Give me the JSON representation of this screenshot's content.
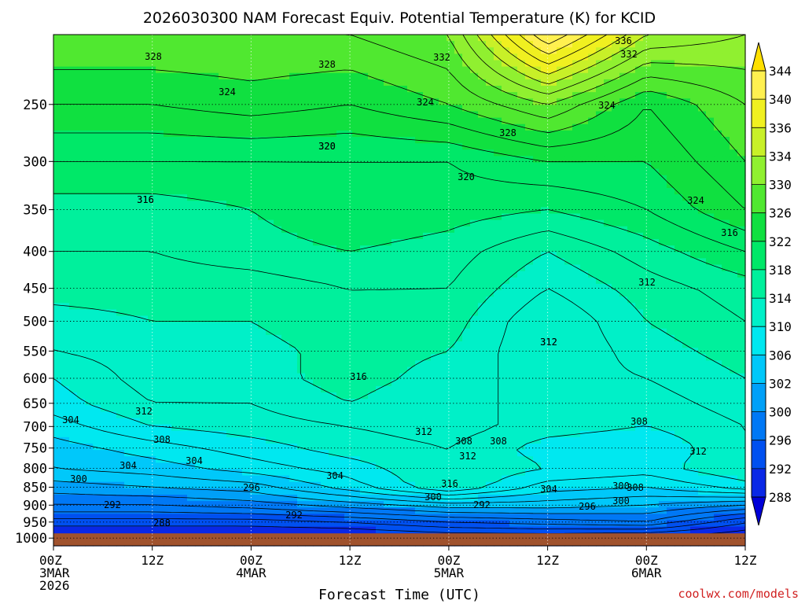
{
  "chart_data": {
    "type": "heatmap",
    "title": "2026030300 NAM Forecast Equiv. Potential Temperature (K) for KCID",
    "xlabel": "Forecast Time (UTC)",
    "ylabel": "",
    "credit": "coolwx.com/models",
    "x_tick_labels": [
      {
        "hour": 0,
        "lines": [
          "00Z",
          "3MAR",
          "2026"
        ]
      },
      {
        "hour": 12,
        "lines": [
          "12Z"
        ]
      },
      {
        "hour": 24,
        "lines": [
          "00Z",
          "4MAR"
        ]
      },
      {
        "hour": 36,
        "lines": [
          "12Z"
        ]
      },
      {
        "hour": 48,
        "lines": [
          "00Z",
          "5MAR"
        ]
      },
      {
        "hour": 60,
        "lines": [
          "12Z"
        ]
      },
      {
        "hour": 72,
        "lines": [
          "00Z",
          "6MAR"
        ]
      },
      {
        "hour": 84,
        "lines": [
          "12Z"
        ]
      }
    ],
    "xlim": [
      0,
      84
    ],
    "y_ticks_hPa": [
      250,
      300,
      350,
      400,
      450,
      500,
      550,
      600,
      650,
      700,
      750,
      800,
      850,
      900,
      950,
      1000
    ],
    "ylim_hPa": [
      1000,
      200
    ],
    "y_scale": "log-pressure",
    "grid": "dotted",
    "ground_level_hPa": 985,
    "ground_color": "#a0522d",
    "colorbar": {
      "levels": [
        288,
        292,
        296,
        300,
        302,
        306,
        310,
        314,
        318,
        322,
        326,
        330,
        334,
        336,
        340,
        344
      ],
      "colors": [
        "#0000d8",
        "#0a28e6",
        "#0050f0",
        "#0078f5",
        "#00a0f8",
        "#00c8fa",
        "#00e8f0",
        "#00f0c8",
        "#00f09c",
        "#00e868",
        "#10e040",
        "#50e830",
        "#90f030",
        "#c8f028",
        "#f0f020",
        "#fff050",
        "#ffe000"
      ],
      "extend": "both"
    },
    "theta_e_K": {
      "pressure_hPa": [
        1000,
        950,
        900,
        850,
        800,
        750,
        700,
        650,
        600,
        550,
        500,
        450,
        400,
        350,
        300,
        250,
        200
      ],
      "hours": [
        0,
        12,
        24,
        36,
        48,
        60,
        72,
        84
      ],
      "values": [
        [
          289,
          289,
          289,
          289,
          290,
          290,
          289,
          288
        ],
        [
          293,
          293,
          293,
          294,
          296,
          297,
          298,
          292
        ],
        [
          298,
          298,
          299,
          301,
          303,
          303,
          302,
          300
        ],
        [
          301,
          302,
          303,
          307,
          312,
          307,
          306,
          309
        ],
        [
          304,
          305,
          307,
          309,
          312,
          310,
          309,
          312
        ],
        [
          305,
          307,
          309,
          311,
          312,
          309,
          308,
          312
        ],
        [
          307,
          310,
          311,
          312,
          313,
          311,
          310,
          312
        ],
        [
          309,
          312,
          312,
          314,
          312,
          312,
          311,
          313
        ],
        [
          310,
          313,
          313,
          315,
          313,
          311,
          312,
          314
        ],
        [
          312,
          313,
          313,
          315,
          314,
          310,
          313,
          315
        ],
        [
          313,
          314,
          314,
          316,
          315,
          310,
          314,
          316
        ],
        [
          315,
          315,
          315,
          316,
          316,
          312,
          315,
          317
        ],
        [
          316,
          316,
          317,
          318,
          317,
          314,
          317,
          320
        ],
        [
          317,
          317,
          318,
          320,
          319,
          318,
          320,
          324
        ],
        [
          320,
          320,
          320,
          320,
          320,
          322,
          322,
          326
        ],
        [
          324,
          324,
          325,
          324,
          326,
          330,
          324,
          328
        ],
        [
          328,
          328,
          328,
          328,
          330,
          344,
          334,
          332
        ]
      ]
    },
    "contour_labels": [
      "304",
      "312",
      "308",
      "304",
      "304",
      "292",
      "300",
      "296",
      "288",
      "292",
      "300",
      "312",
      "304",
      "308",
      "316",
      "312",
      "308",
      "300",
      "316",
      "292",
      "296",
      "304",
      "308",
      "300",
      "312",
      "308",
      "312",
      "316",
      "312",
      "316",
      "320",
      "324",
      "328",
      "328",
      "332",
      "324",
      "328",
      "336",
      "332",
      "324",
      "320",
      "324",
      "320",
      "316",
      "312"
    ]
  }
}
